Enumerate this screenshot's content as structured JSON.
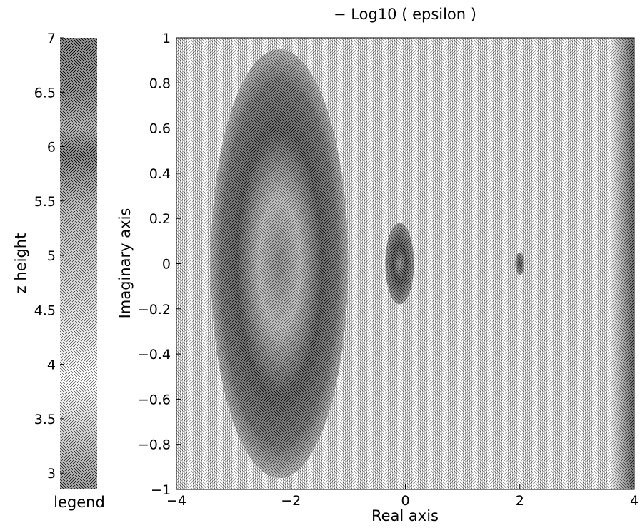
{
  "chart_data": [
    {
      "type": "heatmap",
      "role": "colorbar",
      "xlabel": "legend",
      "ylabel": "z height",
      "ylim": [
        2.85,
        7
      ],
      "yticks": [
        3,
        3.5,
        4,
        4.5,
        5,
        5.5,
        6,
        6.5,
        7
      ],
      "ytick_labels": [
        "3",
        "3.5",
        "4",
        "4.5",
        "5",
        "5.5",
        "6",
        "6.5",
        "7"
      ],
      "colormap": "grayscale dither"
    },
    {
      "type": "heatmap",
      "title": "− Log10 ( epsilon )",
      "xlabel": "Real axis",
      "ylabel": "Imaginary axis",
      "xlim": [
        -4,
        4
      ],
      "ylim": [
        -1,
        1
      ],
      "xticks": [
        -4,
        -2,
        0,
        2,
        4
      ],
      "xtick_labels": [
        "−4",
        "−2",
        "0",
        "2",
        "4"
      ],
      "yticks": [
        -1,
        -0.8,
        -0.6,
        -0.4,
        -0.2,
        0,
        0.2,
        0.4,
        0.6,
        0.8,
        1
      ],
      "ytick_labels": [
        "−1",
        "−0.8",
        "−0.6",
        "−0.4",
        "−0.2",
        "0",
        "0.2",
        "0.4",
        "0.6",
        "0.8",
        "1"
      ],
      "grid": false,
      "features": [
        {
          "kind": "dark-lobe",
          "center": [
            -2.2,
            0
          ],
          "radius_real": 1.2,
          "radius_imag": 0.95,
          "level": 6.8
        },
        {
          "kind": "dark-core",
          "center": [
            -0.1,
            0
          ],
          "radius_real": 0.25,
          "radius_imag": 0.18,
          "level": 6.5
        },
        {
          "kind": "dark-core",
          "center": [
            2.0,
            0
          ],
          "radius_real": 0.08,
          "radius_imag": 0.05,
          "level": 6.2
        },
        {
          "kind": "dark-band",
          "x_range": [
            3.6,
            4.0
          ],
          "level": 6.0
        }
      ]
    }
  ]
}
